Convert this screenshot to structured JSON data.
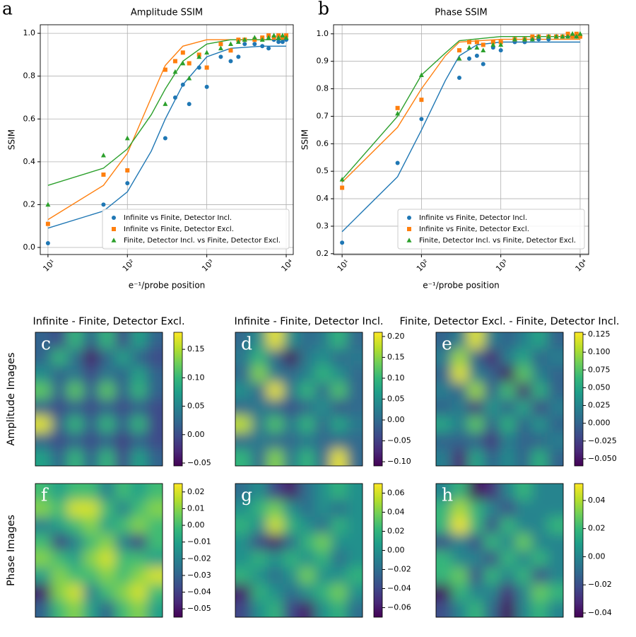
{
  "chart_data": [
    {
      "type": "scatter",
      "panel_label": "a",
      "title": "Amplitude SSIM",
      "xlabel": "e⁻¹/probe position",
      "ylabel": "SSIM",
      "xscale": "log",
      "xlim": [
        8,
        12270
      ],
      "ylim": [
        -0.033,
        1.04
      ],
      "xticks": [
        {
          "value": 10,
          "label": "10¹"
        },
        {
          "value": 100,
          "label": "10²"
        },
        {
          "value": 1000,
          "label": "10³"
        },
        {
          "value": 10000,
          "label": "10⁴"
        }
      ],
      "yticks": [
        {
          "value": 0,
          "label": "0.0"
        },
        0.2,
        0.4,
        0.6,
        0.8,
        {
          "value": 1,
          "label": "1.0"
        }
      ],
      "grid": true,
      "legend": "lower right",
      "x": [
        10,
        50,
        100,
        300,
        400,
        500,
        600,
        800,
        1000,
        1500,
        2000,
        2500,
        3000,
        4000,
        5000,
        6000,
        7000,
        8000,
        9000,
        10000
      ],
      "series": [
        {
          "name": "Infinite vs Finite, Detector Incl.",
          "color": "#1f77b4",
          "marker": "circle",
          "values": [
            0.02,
            0.2,
            0.3,
            0.51,
            0.7,
            0.76,
            0.67,
            0.84,
            0.75,
            0.89,
            0.87,
            0.89,
            0.95,
            0.95,
            0.94,
            0.93,
            0.97,
            0.96,
            0.96,
            0.97
          ]
        },
        {
          "name": "Infinite vs Finite, Detector Excl.",
          "color": "#ff7f0e",
          "marker": "square",
          "values": [
            0.11,
            0.34,
            0.36,
            0.83,
            0.87,
            0.91,
            0.86,
            0.9,
            0.84,
            0.95,
            0.92,
            0.97,
            0.97,
            0.97,
            0.98,
            0.99,
            0.98,
            0.99,
            0.98,
            0.99
          ]
        },
        {
          "name": "Finite, Detector Incl. vs Finite, Detector Excl.",
          "color": "#2ca02c",
          "marker": "triangle",
          "values": [
            0.2,
            0.43,
            0.51,
            0.67,
            0.82,
            0.86,
            0.79,
            0.89,
            0.91,
            0.93,
            0.95,
            0.96,
            0.97,
            0.98,
            0.97,
            0.98,
            0.99,
            0.98,
            0.99,
            0.98
          ]
        }
      ],
      "fits": [
        {
          "color": "#1f77b4",
          "x": [
            10,
            50,
            100,
            200,
            300,
            500,
            1000,
            2000,
            5000,
            10000
          ],
          "values": [
            0.09,
            0.17,
            0.26,
            0.45,
            0.6,
            0.76,
            0.89,
            0.93,
            0.94,
            0.94
          ]
        },
        {
          "color": "#ff7f0e",
          "x": [
            10,
            50,
            100,
            200,
            300,
            500,
            1000,
            10000
          ],
          "values": [
            0.13,
            0.29,
            0.44,
            0.7,
            0.85,
            0.94,
            0.97,
            0.97
          ]
        },
        {
          "color": "#2ca02c",
          "x": [
            10,
            50,
            100,
            200,
            300,
            500,
            1000,
            2000,
            10000
          ],
          "values": [
            0.29,
            0.37,
            0.46,
            0.62,
            0.74,
            0.87,
            0.95,
            0.97,
            0.97
          ]
        }
      ]
    },
    {
      "type": "scatter",
      "panel_label": "b",
      "title": "Phase SSIM",
      "xlabel": "e⁻¹/probe position",
      "ylabel": "SSIM",
      "xscale": "log",
      "xlim": [
        7.8,
        12800
      ],
      "ylim": [
        0.197,
        1.033
      ],
      "xticks": [
        {
          "value": 10,
          "label": "10¹"
        },
        {
          "value": 100,
          "label": "10²"
        },
        {
          "value": 1000,
          "label": "10³"
        },
        {
          "value": 10000,
          "label": "10⁴"
        }
      ],
      "yticks": [
        0.2,
        0.3,
        0.4,
        0.5,
        0.6,
        0.7,
        0.8,
        0.9,
        {
          "value": 1,
          "label": "1.0"
        }
      ],
      "grid": true,
      "legend": "lower right",
      "x": [
        10,
        50,
        100,
        300,
        400,
        500,
        600,
        800,
        1000,
        1500,
        2000,
        2500,
        3000,
        4000,
        5000,
        6000,
        7000,
        8000,
        9000,
        10000
      ],
      "series": [
        {
          "name": "Infinite vs Finite, Detector Incl.",
          "color": "#1f77b4",
          "marker": "circle",
          "values": [
            0.24,
            0.53,
            0.69,
            0.84,
            0.91,
            0.92,
            0.89,
            0.95,
            0.94,
            0.97,
            0.97,
            0.98,
            0.98,
            0.98,
            0.99,
            0.99,
            0.99,
            0.99,
            0.99,
            0.99
          ]
        },
        {
          "name": "Infinite vs Finite, Detector Excl.",
          "color": "#ff7f0e",
          "marker": "square",
          "values": [
            0.44,
            0.73,
            0.76,
            0.94,
            0.97,
            0.97,
            0.96,
            0.97,
            0.97,
            0.98,
            0.98,
            0.99,
            0.99,
            0.99,
            0.99,
            0.99,
            1.0,
            0.99,
            1.0,
            0.99
          ]
        },
        {
          "name": "Finite, Detector Incl. vs Finite, Detector Excl.",
          "color": "#2ca02c",
          "marker": "triangle",
          "values": [
            0.47,
            0.71,
            0.85,
            0.91,
            0.95,
            0.95,
            0.94,
            0.96,
            0.96,
            0.98,
            0.98,
            0.98,
            0.99,
            0.99,
            0.99,
            0.99,
            0.99,
            1.0,
            0.99,
            1.0
          ]
        }
      ],
      "fits": [
        {
          "color": "#1f77b4",
          "x": [
            10,
            50,
            100,
            200,
            300,
            500,
            1000,
            10000
          ],
          "values": [
            0.28,
            0.48,
            0.65,
            0.83,
            0.92,
            0.96,
            0.97,
            0.97
          ]
        },
        {
          "color": "#ff7f0e",
          "x": [
            10,
            50,
            100,
            200,
            300,
            1000,
            10000
          ],
          "values": [
            0.46,
            0.66,
            0.8,
            0.92,
            0.97,
            0.98,
            0.98
          ]
        },
        {
          "color": "#2ca02c",
          "x": [
            10,
            50,
            100,
            200,
            300,
            1000,
            10000
          ],
          "values": [
            0.47,
            0.7,
            0.85,
            0.93,
            0.975,
            0.99,
            0.99
          ]
        }
      ]
    },
    {
      "type": "heatmap",
      "panel_label": "c",
      "title": "Infinite - Finite, Detector Excl.",
      "ylabel": "Amplitude Images",
      "colormap": "viridis",
      "vlim": [
        -0.055,
        0.18
      ],
      "colorbar_ticks": [
        {
          "value": -0.05,
          "label": "−0.05"
        },
        {
          "value": 0,
          "label": "0.00"
        },
        0.05,
        {
          "value": 0.1,
          "label": "0.10"
        },
        0.15
      ],
      "values": [
        [
          0.02,
          0.0,
          0.1,
          0.02,
          0.1,
          0.0,
          0.08,
          0.02
        ],
        [
          0.02,
          0.1,
          0.03,
          -0.04,
          0.02,
          0.08,
          0.02,
          0.0
        ],
        [
          0.06,
          0.02,
          0.04,
          0.0,
          0.04,
          0.02,
          0.08,
          0.02
        ],
        [
          0.12,
          0.02,
          0.12,
          0.02,
          0.12,
          0.02,
          0.1,
          0.02
        ],
        [
          0.02,
          0.0,
          0.02,
          0.0,
          0.02,
          0.0,
          0.02,
          0.0
        ],
        [
          0.17,
          0.02,
          0.1,
          0.02,
          0.1,
          0.02,
          0.1,
          0.0
        ],
        [
          0.02,
          0.0,
          0.02,
          0.0,
          0.02,
          -0.01,
          0.02,
          0.0
        ],
        [
          0.08,
          0.02,
          0.1,
          0.02,
          0.1,
          0.0,
          0.08,
          0.02
        ]
      ]
    },
    {
      "type": "heatmap",
      "panel_label": "d",
      "title": "Infinite - Finite, Detector Incl.",
      "colormap": "viridis",
      "vlim": [
        -0.11,
        0.21
      ],
      "colorbar_ticks": [
        {
          "value": -0.1,
          "label": "−0.10"
        },
        {
          "value": -0.05,
          "label": "−0.05"
        },
        {
          "value": 0,
          "label": "0.00"
        },
        0.05,
        {
          "value": 0.1,
          "label": "0.10"
        },
        0.15,
        {
          "value": 0.2,
          "label": "0.20"
        }
      ],
      "values": [
        [
          0.0,
          0.05,
          0.2,
          0.05,
          0.0,
          0.02,
          0.1,
          0.0
        ],
        [
          0.02,
          0.1,
          0.0,
          -0.1,
          0.02,
          0.05,
          0.0,
          0.02
        ],
        [
          0.0,
          0.15,
          0.02,
          0.0,
          0.03,
          0.1,
          0.05,
          0.0
        ],
        [
          0.05,
          0.0,
          0.2,
          0.02,
          0.1,
          0.0,
          0.12,
          0.0
        ],
        [
          0.0,
          0.02,
          0.0,
          -0.03,
          0.0,
          0.05,
          -0.02,
          0.0
        ],
        [
          0.18,
          0.02,
          0.12,
          0.02,
          0.1,
          0.0,
          0.08,
          0.02
        ],
        [
          0.0,
          0.02,
          0.0,
          0.0,
          0.02,
          0.0,
          0.0,
          0.0
        ],
        [
          0.1,
          0.0,
          0.15,
          0.02,
          0.1,
          0.0,
          0.2,
          0.0
        ]
      ]
    },
    {
      "type": "heatmap",
      "panel_label": "e",
      "title": "Finite, Detector Excl. - Finite, Detector Incl.",
      "colormap": "viridis",
      "vlim": [
        -0.06,
        0.128
      ],
      "colorbar_ticks": [
        {
          "value": -0.05,
          "label": "−0.050"
        },
        {
          "value": -0.025,
          "label": "−0.025"
        },
        {
          "value": 0,
          "label": "0.000"
        },
        0.025,
        {
          "value": 0.05,
          "label": "0.050"
        },
        0.075,
        {
          "value": 0.1,
          "label": "0.100"
        },
        0.125
      ],
      "values": [
        [
          0.0,
          0.02,
          0.12,
          0.02,
          0.0,
          0.02,
          0.05,
          0.0
        ],
        [
          0.02,
          0.1,
          0.0,
          -0.04,
          0.02,
          0.05,
          0.0,
          0.02
        ],
        [
          0.0,
          0.12,
          0.02,
          0.0,
          -0.05,
          0.08,
          0.02,
          0.0
        ],
        [
          0.02,
          0.0,
          0.1,
          0.0,
          0.07,
          -0.04,
          0.06,
          0.0
        ],
        [
          0.0,
          0.02,
          -0.03,
          0.04,
          0.0,
          0.05,
          -0.02,
          0.02
        ],
        [
          0.05,
          0.02,
          0.08,
          0.0,
          0.06,
          0.0,
          0.04,
          0.0
        ],
        [
          0.0,
          0.0,
          0.0,
          -0.03,
          0.02,
          0.0,
          0.0,
          0.02
        ],
        [
          0.02,
          -0.04,
          0.05,
          0.0,
          0.03,
          0.0,
          0.06,
          0.0
        ]
      ]
    },
    {
      "type": "heatmap",
      "panel_label": "f",
      "ylabel": "Phase Images",
      "colormap": "viridis",
      "vlim": [
        -0.055,
        0.025
      ],
      "colorbar_ticks": [
        {
          "value": -0.05,
          "label": "−0.05"
        },
        {
          "value": -0.04,
          "label": "−0.04"
        },
        {
          "value": -0.03,
          "label": "−0.03"
        },
        {
          "value": -0.02,
          "label": "−0.02"
        },
        {
          "value": -0.01,
          "label": "−0.01"
        },
        {
          "value": 0,
          "label": "0.00"
        },
        0.01,
        0.02
      ],
      "values": [
        [
          0.0,
          -0.01,
          0.0,
          0.0,
          -0.02,
          0.0,
          -0.01,
          0.0
        ],
        [
          0.01,
          0.0,
          0.02,
          0.02,
          0.0,
          -0.02,
          0.0,
          0.01
        ],
        [
          -0.02,
          -0.01,
          0.0,
          0.01,
          -0.01,
          0.0,
          0.01,
          0.0
        ],
        [
          0.0,
          -0.04,
          -0.02,
          0.0,
          0.01,
          -0.02,
          -0.04,
          0.0
        ],
        [
          0.01,
          0.0,
          -0.01,
          0.01,
          0.02,
          0.0,
          0.0,
          -0.01
        ],
        [
          -0.01,
          0.01,
          0.0,
          0.0,
          0.01,
          0.0,
          0.01,
          0.02
        ],
        [
          -0.05,
          0.01,
          0.02,
          -0.02,
          0.0,
          0.01,
          0.02,
          0.0
        ],
        [
          -0.03,
          0.0,
          0.01,
          -0.01,
          -0.03,
          0.0,
          0.01,
          -0.01
        ]
      ]
    },
    {
      "type": "heatmap",
      "panel_label": "g",
      "colormap": "viridis",
      "vlim": [
        -0.07,
        0.07
      ],
      "colorbar_ticks": [
        {
          "value": -0.06,
          "label": "−0.06"
        },
        {
          "value": -0.04,
          "label": "−0.04"
        },
        {
          "value": -0.02,
          "label": "−0.02"
        },
        {
          "value": 0,
          "label": "0.00"
        },
        0.02,
        0.04,
        0.06
      ],
      "values": [
        [
          -0.02,
          0.0,
          -0.04,
          -0.06,
          -0.02,
          0.0,
          0.02,
          0.0
        ],
        [
          0.0,
          0.02,
          0.04,
          0.0,
          -0.02,
          0.0,
          -0.02,
          0.0
        ],
        [
          0.02,
          0.0,
          0.06,
          0.02,
          0.0,
          -0.02,
          0.02,
          0.0
        ],
        [
          0.0,
          -0.04,
          -0.06,
          -0.02,
          0.02,
          0.04,
          0.0,
          0.0
        ],
        [
          0.0,
          0.02,
          0.0,
          0.02,
          0.0,
          0.02,
          -0.02,
          0.0
        ],
        [
          0.02,
          0.0,
          -0.02,
          0.0,
          0.04,
          0.0,
          0.0,
          0.02
        ],
        [
          -0.06,
          0.02,
          0.0,
          -0.02,
          0.0,
          0.02,
          0.04,
          0.0
        ],
        [
          -0.04,
          0.0,
          0.02,
          -0.04,
          -0.06,
          0.0,
          0.02,
          -0.02
        ]
      ]
    },
    {
      "type": "heatmap",
      "panel_label": "h",
      "colormap": "viridis",
      "vlim": [
        -0.043,
        0.052
      ],
      "colorbar_ticks": [
        {
          "value": -0.04,
          "label": "−0.04"
        },
        {
          "value": -0.02,
          "label": "−0.02"
        },
        {
          "value": 0,
          "label": "0.00"
        },
        0.02,
        0.04
      ],
      "values": [
        [
          0.0,
          0.02,
          -0.04,
          -0.03,
          0.0,
          0.02,
          0.0,
          0.0
        ],
        [
          0.02,
          0.04,
          0.02,
          0.0,
          -0.02,
          0.0,
          0.0,
          0.0
        ],
        [
          0.02,
          0.05,
          0.02,
          -0.02,
          0.02,
          0.0,
          0.0,
          0.02
        ],
        [
          -0.02,
          0.0,
          -0.02,
          0.02,
          0.0,
          0.03,
          0.0,
          0.0
        ],
        [
          0.02,
          0.0,
          0.0,
          -0.02,
          0.02,
          0.0,
          0.02,
          0.0
        ],
        [
          0.02,
          0.03,
          -0.02,
          0.02,
          0.0,
          0.02,
          -0.02,
          0.0
        ],
        [
          -0.04,
          0.02,
          0.0,
          0.0,
          -0.03,
          0.0,
          0.03,
          0.02
        ],
        [
          -0.02,
          0.0,
          0.02,
          -0.01,
          -0.04,
          0.0,
          0.02,
          0.0
        ]
      ]
    }
  ]
}
